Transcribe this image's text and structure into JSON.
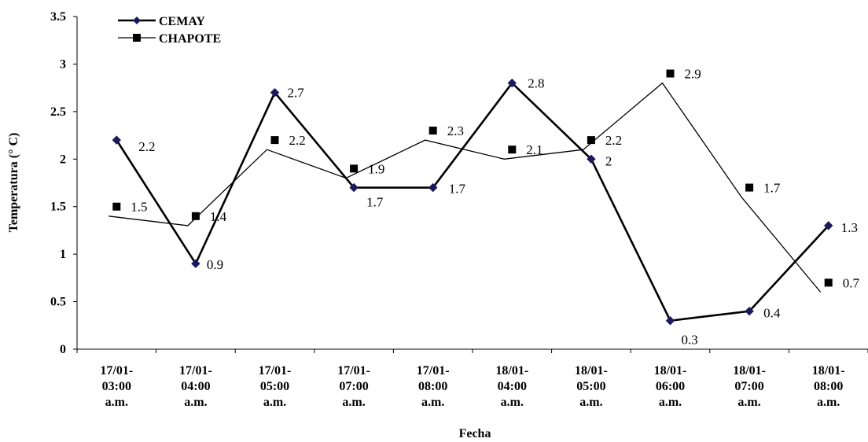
{
  "chart_data": {
    "type": "line",
    "title": "",
    "xlabel": "Fecha",
    "ylabel": "Temperatura (° C)",
    "ylim": [
      0,
      3.5
    ],
    "yticks": [
      "0",
      "0.5",
      "1",
      "1.5",
      "2",
      "2.5",
      "3",
      "3.5"
    ],
    "categories": [
      [
        "17/01-",
        "03:00",
        "a.m."
      ],
      [
        "17/01-",
        "04:00",
        "a.m."
      ],
      [
        "17/01-",
        "05:00",
        "a.m."
      ],
      [
        "17/01-",
        "07:00",
        "a.m."
      ],
      [
        "17/01-",
        "08:00",
        "a.m."
      ],
      [
        "18/01-",
        "04:00",
        "a.m."
      ],
      [
        "18/01-",
        "05:00",
        "a.m."
      ],
      [
        "18/01-",
        "06:00",
        "a.m."
      ],
      [
        "18/01-",
        "07:00",
        "a.m."
      ],
      [
        "18/01-",
        "08:00",
        "a.m."
      ]
    ],
    "legend_position": "top-left",
    "grid": false,
    "series": [
      {
        "name": "CEMAY",
        "marker": "diamond",
        "color": "#000000",
        "marker_color": "#1a1a5e",
        "values": [
          2.2,
          0.9,
          2.7,
          1.7,
          1.7,
          2.8,
          2.0,
          0.3,
          0.4,
          1.3
        ],
        "labels": [
          "2.2",
          "0.9",
          "2.7",
          "1.7",
          "1.7",
          "2.8",
          "2",
          "0.3",
          "0.4",
          "1.3"
        ]
      },
      {
        "name": "CHAPOTE",
        "marker": "square",
        "color": "#000000",
        "marker_color": "#000000",
        "values": [
          1.5,
          1.4,
          2.2,
          1.9,
          2.3,
          2.1,
          2.2,
          2.9,
          1.7,
          0.7
        ],
        "labels": [
          "1.5",
          "1.4",
          "2.2",
          "1.9",
          "2.3",
          "2.1",
          "2.2",
          "2.9",
          "1.7",
          "0.7"
        ]
      }
    ]
  }
}
